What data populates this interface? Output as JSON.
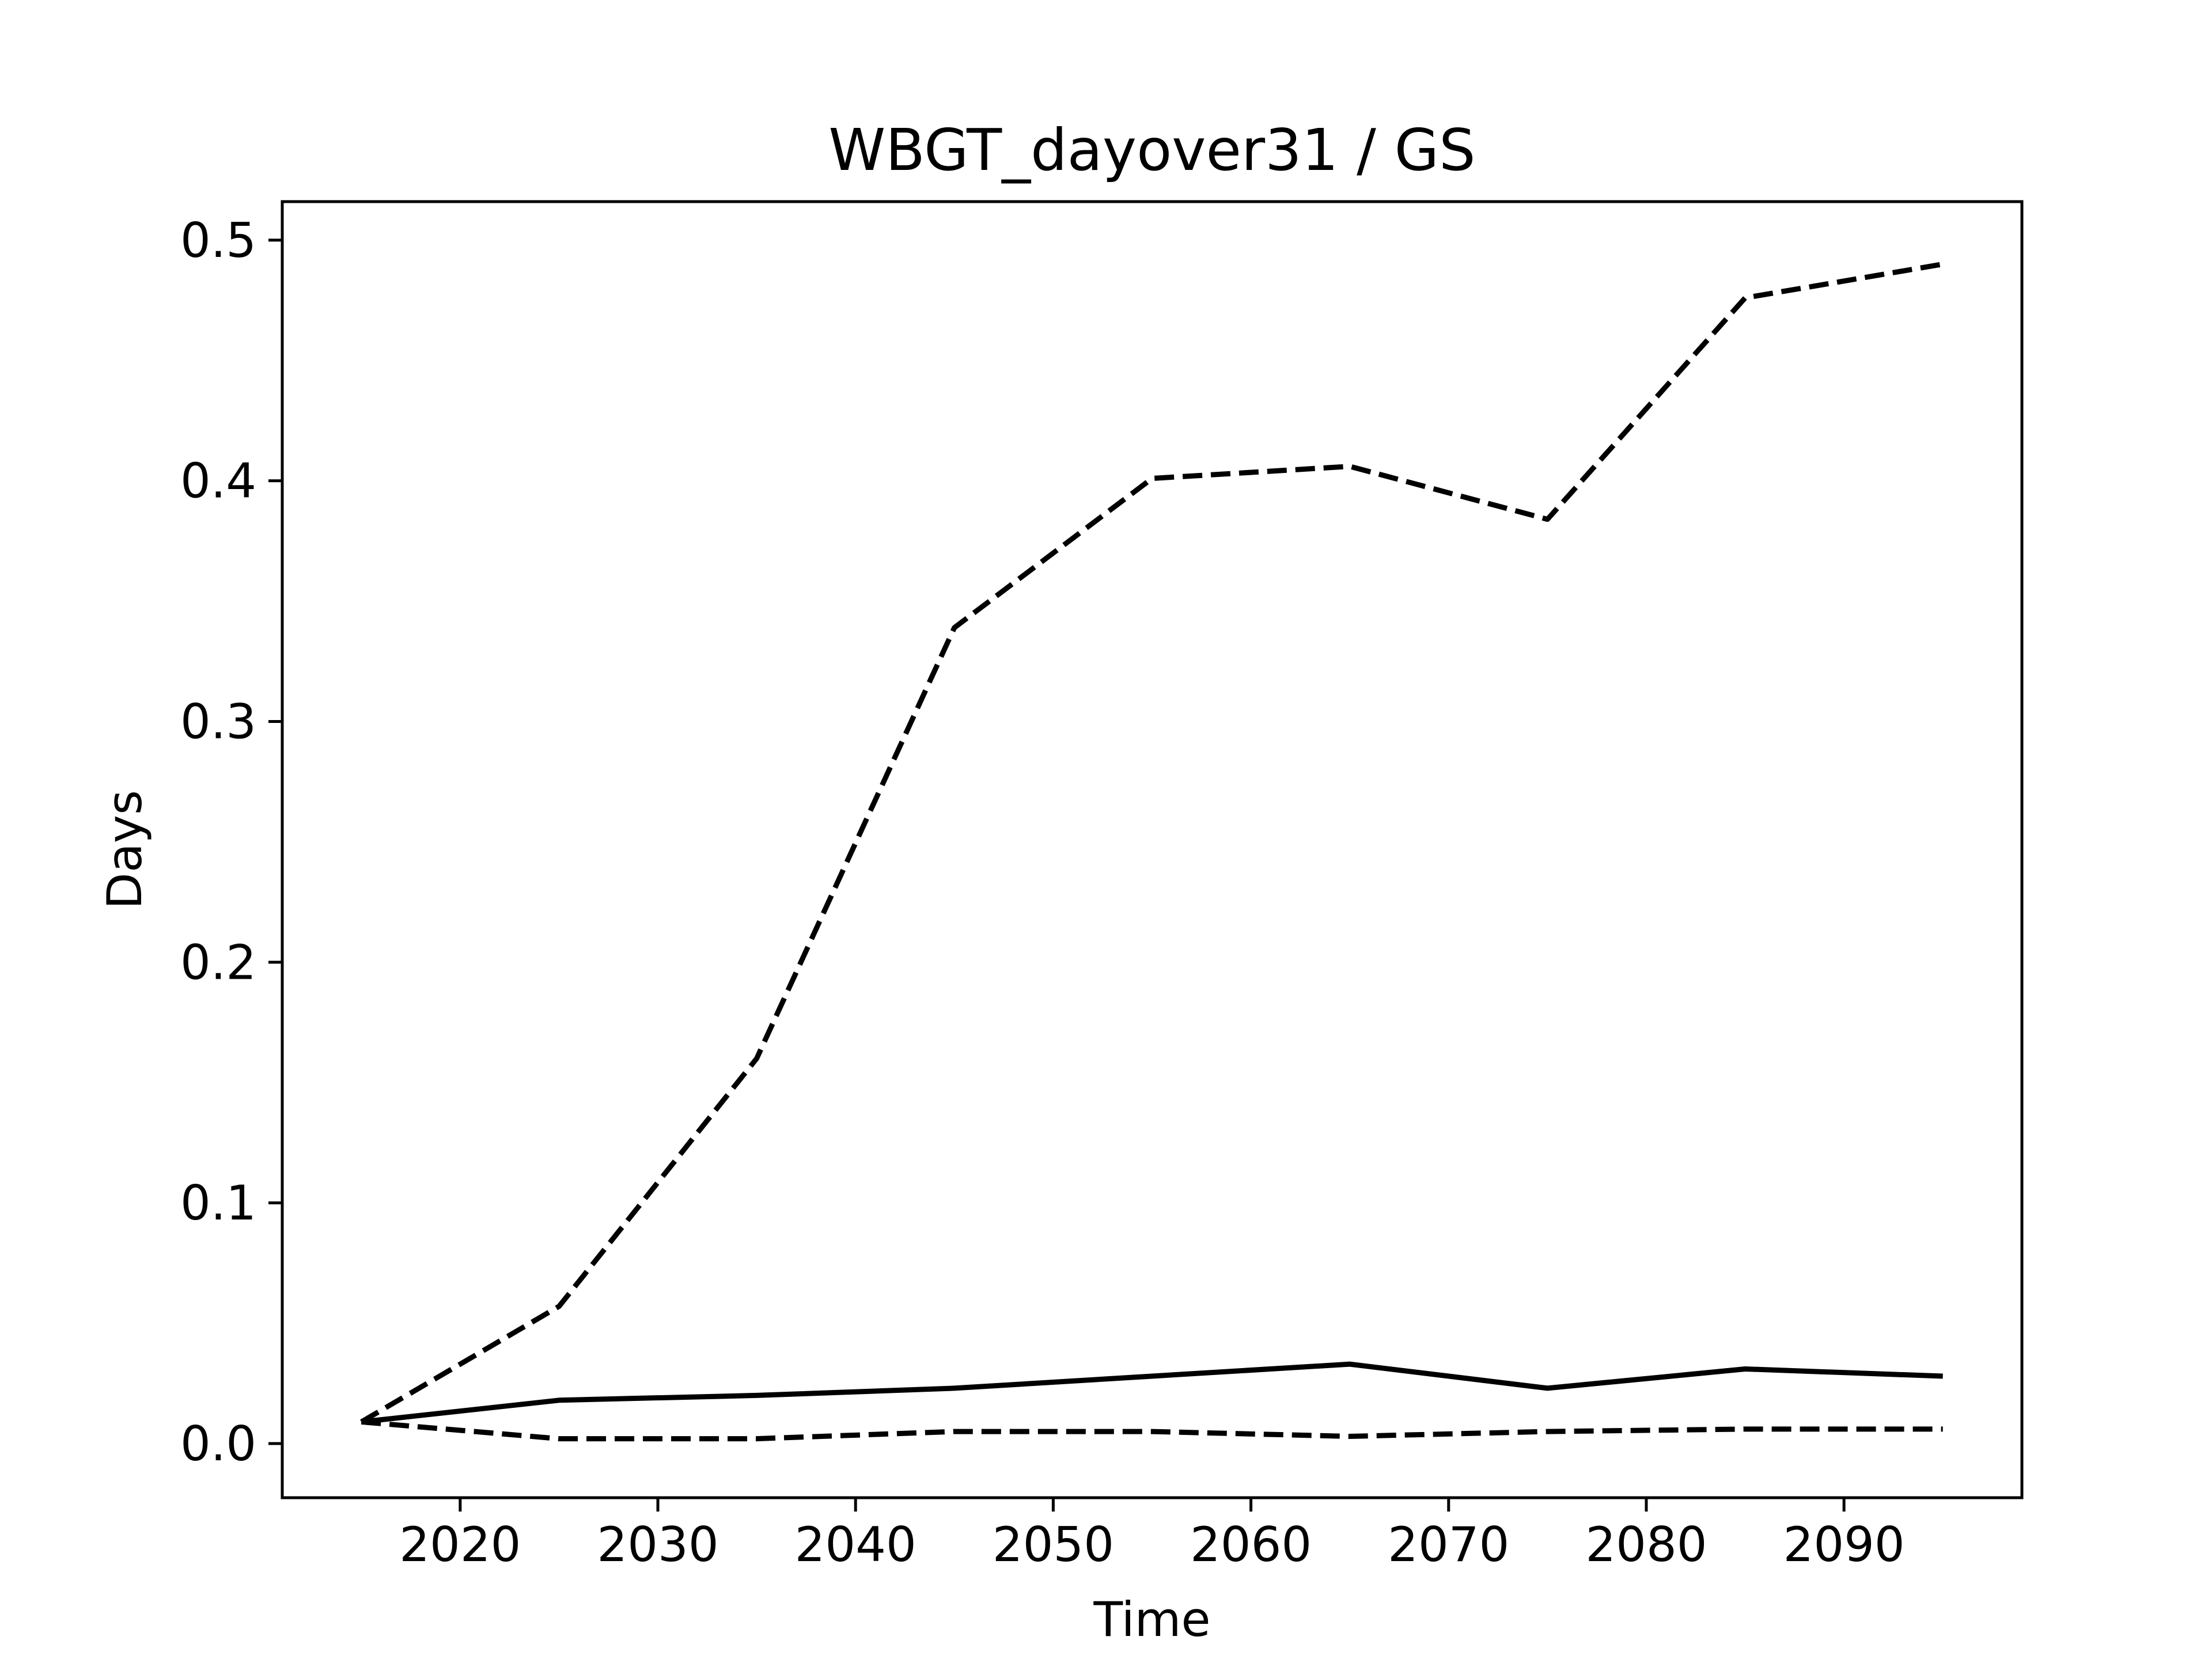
{
  "chart_data": {
    "type": "line",
    "title": "WBGT_dayover31 / GS",
    "xlabel": "Time",
    "ylabel": "Days",
    "xlim": [
      2011,
      2099
    ],
    "ylim": [
      -0.0225,
      0.516
    ],
    "xticks": [
      2020,
      2030,
      2040,
      2050,
      2060,
      2070,
      2080,
      2090
    ],
    "yticks": [
      0.0,
      0.1,
      0.2,
      0.3,
      0.4,
      0.5
    ],
    "ytick_labels": [
      "0.0",
      "0.1",
      "0.2",
      "0.3",
      "0.4",
      "0.5"
    ],
    "grid": false,
    "legend": "none",
    "x": [
      2015,
      2025,
      2035,
      2045,
      2055,
      2065,
      2075,
      2085,
      2095
    ],
    "series": [
      {
        "style": "dashed",
        "color": "#000000",
        "values": [
          0.009,
          0.057,
          0.16,
          0.339,
          0.401,
          0.406,
          0.384,
          0.476,
          0.49
        ]
      },
      {
        "style": "solid",
        "color": "#000000",
        "values": [
          0.009,
          0.018,
          0.02,
          0.023,
          0.028,
          0.033,
          0.023,
          0.031,
          0.028
        ]
      },
      {
        "style": "dashed",
        "color": "#000000",
        "values": [
          0.009,
          0.002,
          0.002,
          0.005,
          0.005,
          0.003,
          0.005,
          0.006,
          0.006
        ]
      }
    ]
  }
}
